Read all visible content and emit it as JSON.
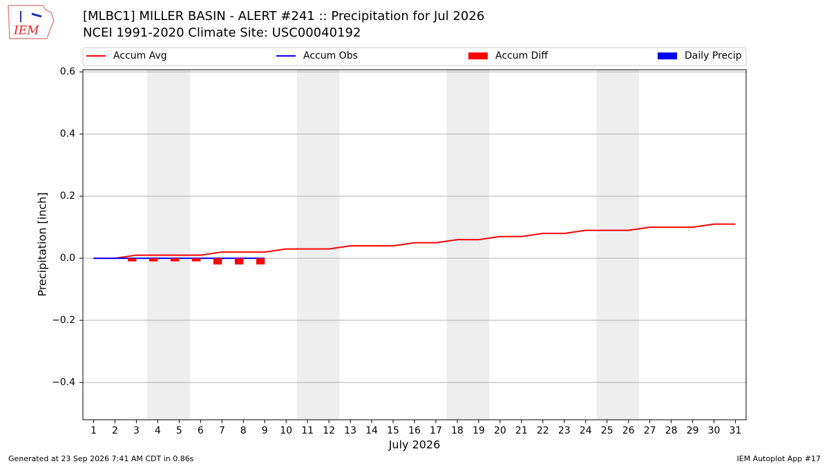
{
  "chart_data": {
    "type": "line",
    "title": "[MLBC1] MILLER BASIN - ALERT #241 :: Precipitation for Jul 2026",
    "subtitle": "NCEI 1991-2020 Climate Site: USC00040192",
    "logo_text": "IEM",
    "xlabel": "July 2026",
    "ylabel": "Precipitation [inch]",
    "footer_left": "Generated at 23 Sep 2026 7:41 AM CDT in 0.86s",
    "footer_right": "IEM Autoplot App #17",
    "x": [
      1,
      2,
      3,
      4,
      5,
      6,
      7,
      8,
      9,
      10,
      11,
      12,
      13,
      14,
      15,
      16,
      17,
      18,
      19,
      20,
      21,
      22,
      23,
      24,
      25,
      26,
      27,
      28,
      29,
      30,
      31
    ],
    "xlim": [
      0.5,
      31.5
    ],
    "xticks": [
      1,
      2,
      3,
      4,
      5,
      6,
      7,
      8,
      9,
      10,
      11,
      12,
      13,
      14,
      15,
      16,
      17,
      18,
      19,
      20,
      21,
      22,
      23,
      24,
      25,
      26,
      27,
      28,
      29,
      30,
      31
    ],
    "ylim": [
      -0.52,
      0.607
    ],
    "yticks": [
      {
        "value": -0.4,
        "label": "−0.4"
      },
      {
        "value": -0.2,
        "label": "−0.2"
      },
      {
        "value": 0,
        "label": "0.0"
      },
      0.2,
      0.4,
      0.6
    ],
    "grid": "y",
    "legend": "upper center",
    "shaded_spans": [
      [
        3.5,
        5.5
      ],
      [
        10.5,
        12.5
      ],
      [
        17.5,
        19.5
      ],
      [
        24.5,
        26.5
      ]
    ],
    "shade_color": "#eeeeee",
    "series": [
      {
        "name": "Accum Avg",
        "kind": "line",
        "color": "#ff0000",
        "values": [
          0,
          0,
          0.01,
          0.01,
          0.01,
          0.01,
          0.02,
          0.02,
          0.02,
          0.03,
          0.03,
          0.03,
          0.04,
          0.04,
          0.04,
          0.05,
          0.05,
          0.06,
          0.06,
          0.07,
          0.07,
          0.08,
          0.08,
          0.09,
          0.09,
          0.09,
          0.1,
          0.1,
          0.1,
          0.11,
          0.11
        ]
      },
      {
        "name": "Accum Obs",
        "kind": "line",
        "color": "#0000ff",
        "values": [
          0,
          0,
          0,
          0,
          0,
          0,
          0,
          0,
          0,
          null,
          null,
          null,
          null,
          null,
          null,
          null,
          null,
          null,
          null,
          null,
          null,
          null,
          null,
          null,
          null,
          null,
          null,
          null,
          null,
          null,
          null
        ]
      },
      {
        "name": "Accum Diff",
        "kind": "bar",
        "color": "#ff0000",
        "values": [
          0,
          0,
          -0.01,
          -0.01,
          -0.01,
          -0.01,
          -0.02,
          -0.02,
          -0.02,
          null,
          null,
          null,
          null,
          null,
          null,
          null,
          null,
          null,
          null,
          null,
          null,
          null,
          null,
          null,
          null,
          null,
          null,
          null,
          null,
          null,
          null
        ]
      },
      {
        "name": "Daily Precip",
        "kind": "bar",
        "color": "#0000ff",
        "values": [
          0,
          0,
          0,
          0,
          0,
          0,
          0,
          0,
          0,
          null,
          null,
          null,
          null,
          null,
          null,
          null,
          null,
          null,
          null,
          null,
          null,
          null,
          null,
          null,
          null,
          null,
          null,
          null,
          null,
          null,
          null
        ]
      }
    ]
  }
}
